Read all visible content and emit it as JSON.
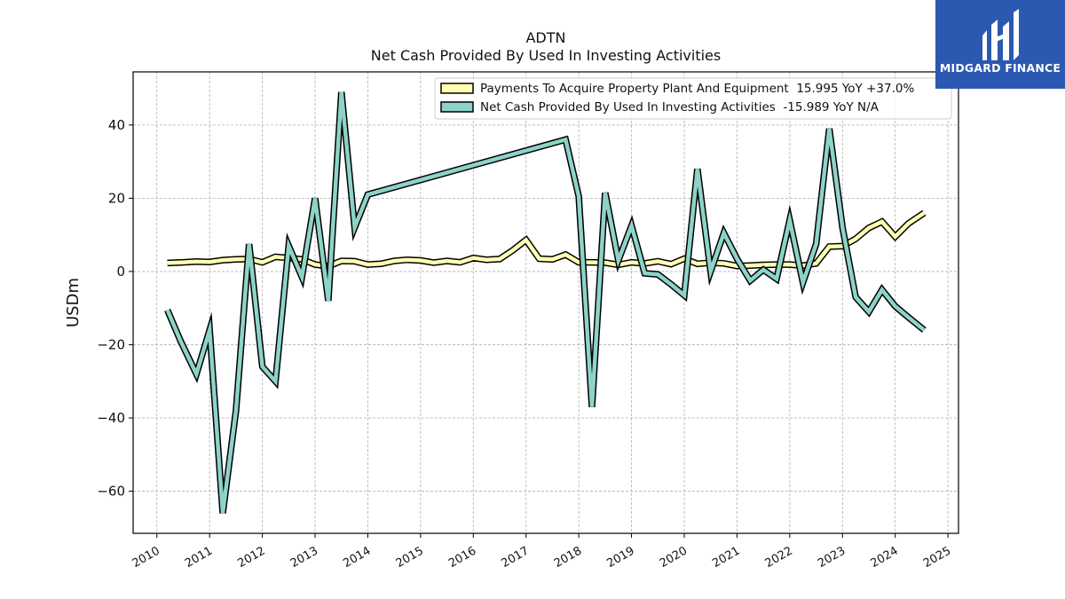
{
  "chart_data": {
    "type": "line",
    "title": "ADTN",
    "subtitle": "Net Cash Provided By Used In Investing Activities",
    "ylabel": "USDm",
    "xlabel": "",
    "xlim": [
      2009.55,
      2025.2
    ],
    "ylim": [
      -71.5,
      54.5
    ],
    "grid": true,
    "legend_position": "top-right",
    "x_ticks": [
      2010,
      2011,
      2012,
      2013,
      2014,
      2015,
      2016,
      2017,
      2018,
      2019,
      2020,
      2021,
      2022,
      2023,
      2024,
      2025
    ],
    "y_ticks": [
      -60,
      -40,
      -20,
      0,
      20,
      40
    ],
    "y_tick_labels": [
      "−60",
      "−40",
      "−20",
      "0",
      "20",
      "40"
    ],
    "series": [
      {
        "name": "Payments To Acquire Property Plant And Equipment  15.995 YoY +37.0%",
        "color": "#ffffb3",
        "points": [
          [
            2010.2,
            2.3
          ],
          [
            2010.5,
            2.5
          ],
          [
            2010.75,
            2.7
          ],
          [
            2011.0,
            2.6
          ],
          [
            2011.25,
            3.1
          ],
          [
            2011.5,
            3.3
          ],
          [
            2011.75,
            3.4
          ],
          [
            2012.0,
            2.5
          ],
          [
            2012.25,
            4.0
          ],
          [
            2012.5,
            3.7
          ],
          [
            2012.75,
            3.3
          ],
          [
            2013.0,
            1.9
          ],
          [
            2013.25,
            1.4
          ],
          [
            2013.5,
            2.9
          ],
          [
            2013.75,
            2.8
          ],
          [
            2014.0,
            1.9
          ],
          [
            2014.25,
            2.1
          ],
          [
            2014.5,
            2.9
          ],
          [
            2014.75,
            3.2
          ],
          [
            2015.0,
            3.0
          ],
          [
            2015.25,
            2.4
          ],
          [
            2015.5,
            2.9
          ],
          [
            2015.75,
            2.5
          ],
          [
            2016.0,
            3.7
          ],
          [
            2016.25,
            3.2
          ],
          [
            2016.5,
            3.4
          ],
          [
            2016.75,
            5.8
          ],
          [
            2017.0,
            8.6
          ],
          [
            2017.25,
            3.5
          ],
          [
            2017.5,
            3.3
          ],
          [
            2017.75,
            4.6
          ],
          [
            2018.0,
            2.5
          ],
          [
            2018.25,
            2.5
          ],
          [
            2018.5,
            2.4
          ],
          [
            2018.75,
            1.8
          ],
          [
            2019.0,
            2.5
          ],
          [
            2019.25,
            2.2
          ],
          [
            2019.5,
            2.8
          ],
          [
            2019.75,
            2.0
          ],
          [
            2020.0,
            3.5
          ],
          [
            2020.25,
            2.1
          ],
          [
            2020.5,
            2.4
          ],
          [
            2020.75,
            2.2
          ],
          [
            2021.0,
            1.5
          ],
          [
            2021.25,
            1.6
          ],
          [
            2021.5,
            1.8
          ],
          [
            2021.75,
            1.9
          ],
          [
            2022.0,
            1.9
          ],
          [
            2022.25,
            1.6
          ],
          [
            2022.5,
            2.2
          ],
          [
            2022.75,
            6.8
          ],
          [
            2023.0,
            6.9
          ],
          [
            2023.25,
            8.9
          ],
          [
            2023.5,
            11.9
          ],
          [
            2023.75,
            13.6
          ],
          [
            2024.0,
            9.5
          ],
          [
            2024.25,
            13.1
          ],
          [
            2024.55,
            16.0
          ]
        ]
      },
      {
        "name": "Net Cash Provided By Used In Investing Activities  -15.989 YoY N/A",
        "color": "#8dd3c7",
        "points": [
          [
            2010.2,
            -10.5
          ],
          [
            2010.45,
            -19.0
          ],
          [
            2010.75,
            -28.0
          ],
          [
            2011.0,
            -16.0
          ],
          [
            2011.25,
            -66.0
          ],
          [
            2011.5,
            -38.0
          ],
          [
            2011.75,
            7.5
          ],
          [
            2012.0,
            -26.0
          ],
          [
            2012.25,
            -30.0
          ],
          [
            2012.5,
            7.0
          ],
          [
            2012.75,
            -1.5
          ],
          [
            2013.0,
            20.0
          ],
          [
            2013.25,
            -8.0
          ],
          [
            2013.5,
            49.0
          ],
          [
            2013.75,
            12.0
          ],
          [
            2014.0,
            21.0
          ],
          [
            2017.75,
            36.0
          ],
          [
            2018.0,
            20.5
          ],
          [
            2018.25,
            -37.0
          ],
          [
            2018.5,
            21.5
          ],
          [
            2018.75,
            3.0
          ],
          [
            2019.0,
            12.5
          ],
          [
            2019.25,
            -0.5
          ],
          [
            2019.5,
            -0.8
          ],
          [
            2019.75,
            -3.5
          ],
          [
            2020.0,
            -6.5
          ],
          [
            2020.25,
            28.0
          ],
          [
            2020.5,
            0.0
          ],
          [
            2020.75,
            10.5
          ],
          [
            2021.0,
            3.5
          ],
          [
            2021.25,
            -2.5
          ],
          [
            2021.5,
            0.5
          ],
          [
            2021.75,
            -2.0
          ],
          [
            2022.0,
            14.0
          ],
          [
            2022.25,
            -3.0
          ],
          [
            2022.5,
            7.5
          ],
          [
            2022.75,
            39.0
          ],
          [
            2023.0,
            12.0
          ],
          [
            2023.25,
            -7.0
          ],
          [
            2023.5,
            -11.0
          ],
          [
            2023.75,
            -5.0
          ],
          [
            2024.0,
            -9.5
          ],
          [
            2024.25,
            -12.5
          ],
          [
            2024.55,
            -16.0
          ]
        ]
      }
    ]
  },
  "logo": {
    "text": "MIDGARD FINANCE",
    "background": "#2b58b0"
  }
}
